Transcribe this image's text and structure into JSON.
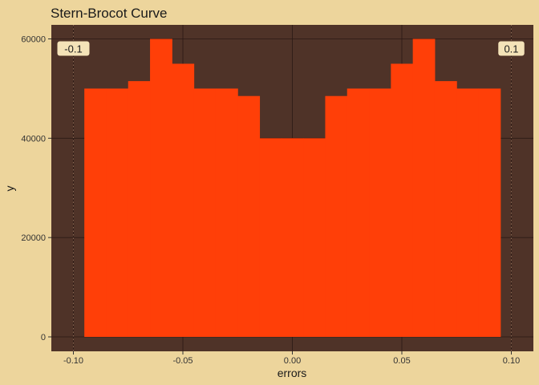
{
  "colors": {
    "background": "#EDD59C",
    "panel": "#4F3328",
    "bar": "#FF3F08",
    "grid": "#2a1a14",
    "label_box": "#F4E3B8",
    "text": "#1a1a1a"
  },
  "chart_data": {
    "type": "bar",
    "title": "Stern-Brocot Curve",
    "xlabel": "errors",
    "ylabel": "y",
    "xlim": [
      -0.1,
      0.1
    ],
    "ylim": [
      0,
      60000
    ],
    "x_ticks": [
      -0.1,
      -0.05,
      0.0,
      0.05,
      0.1
    ],
    "x_tick_labels": [
      "-0.10",
      "-0.05",
      "0.00",
      "0.05",
      "0.10"
    ],
    "y_ticks": [
      0,
      20000,
      40000,
      60000
    ],
    "y_tick_labels": [
      "0",
      "20000",
      "40000",
      "60000"
    ],
    "bin_width": 0.01,
    "bins": [
      {
        "x": -0.09,
        "value": 50000
      },
      {
        "x": -0.08,
        "value": 50000
      },
      {
        "x": -0.07,
        "value": 51500
      },
      {
        "x": -0.06,
        "value": 60000
      },
      {
        "x": -0.05,
        "value": 55000
      },
      {
        "x": -0.04,
        "value": 50000
      },
      {
        "x": -0.03,
        "value": 50000
      },
      {
        "x": -0.02,
        "value": 48500
      },
      {
        "x": -0.01,
        "value": 40000
      },
      {
        "x": 0.0,
        "value": 40000
      },
      {
        "x": 0.01,
        "value": 40000
      },
      {
        "x": 0.02,
        "value": 48500
      },
      {
        "x": 0.03,
        "value": 50000
      },
      {
        "x": 0.04,
        "value": 50000
      },
      {
        "x": 0.05,
        "value": 55000
      },
      {
        "x": 0.06,
        "value": 60000
      },
      {
        "x": 0.07,
        "value": 51500
      },
      {
        "x": 0.08,
        "value": 50000
      },
      {
        "x": 0.09,
        "value": 50000
      }
    ],
    "reference_lines": [
      {
        "x": -0.1,
        "label": "-0.1",
        "style": "dotted"
      },
      {
        "x": 0.1,
        "label": "0.1",
        "style": "dotted"
      }
    ],
    "grid": true,
    "legend": "none"
  }
}
